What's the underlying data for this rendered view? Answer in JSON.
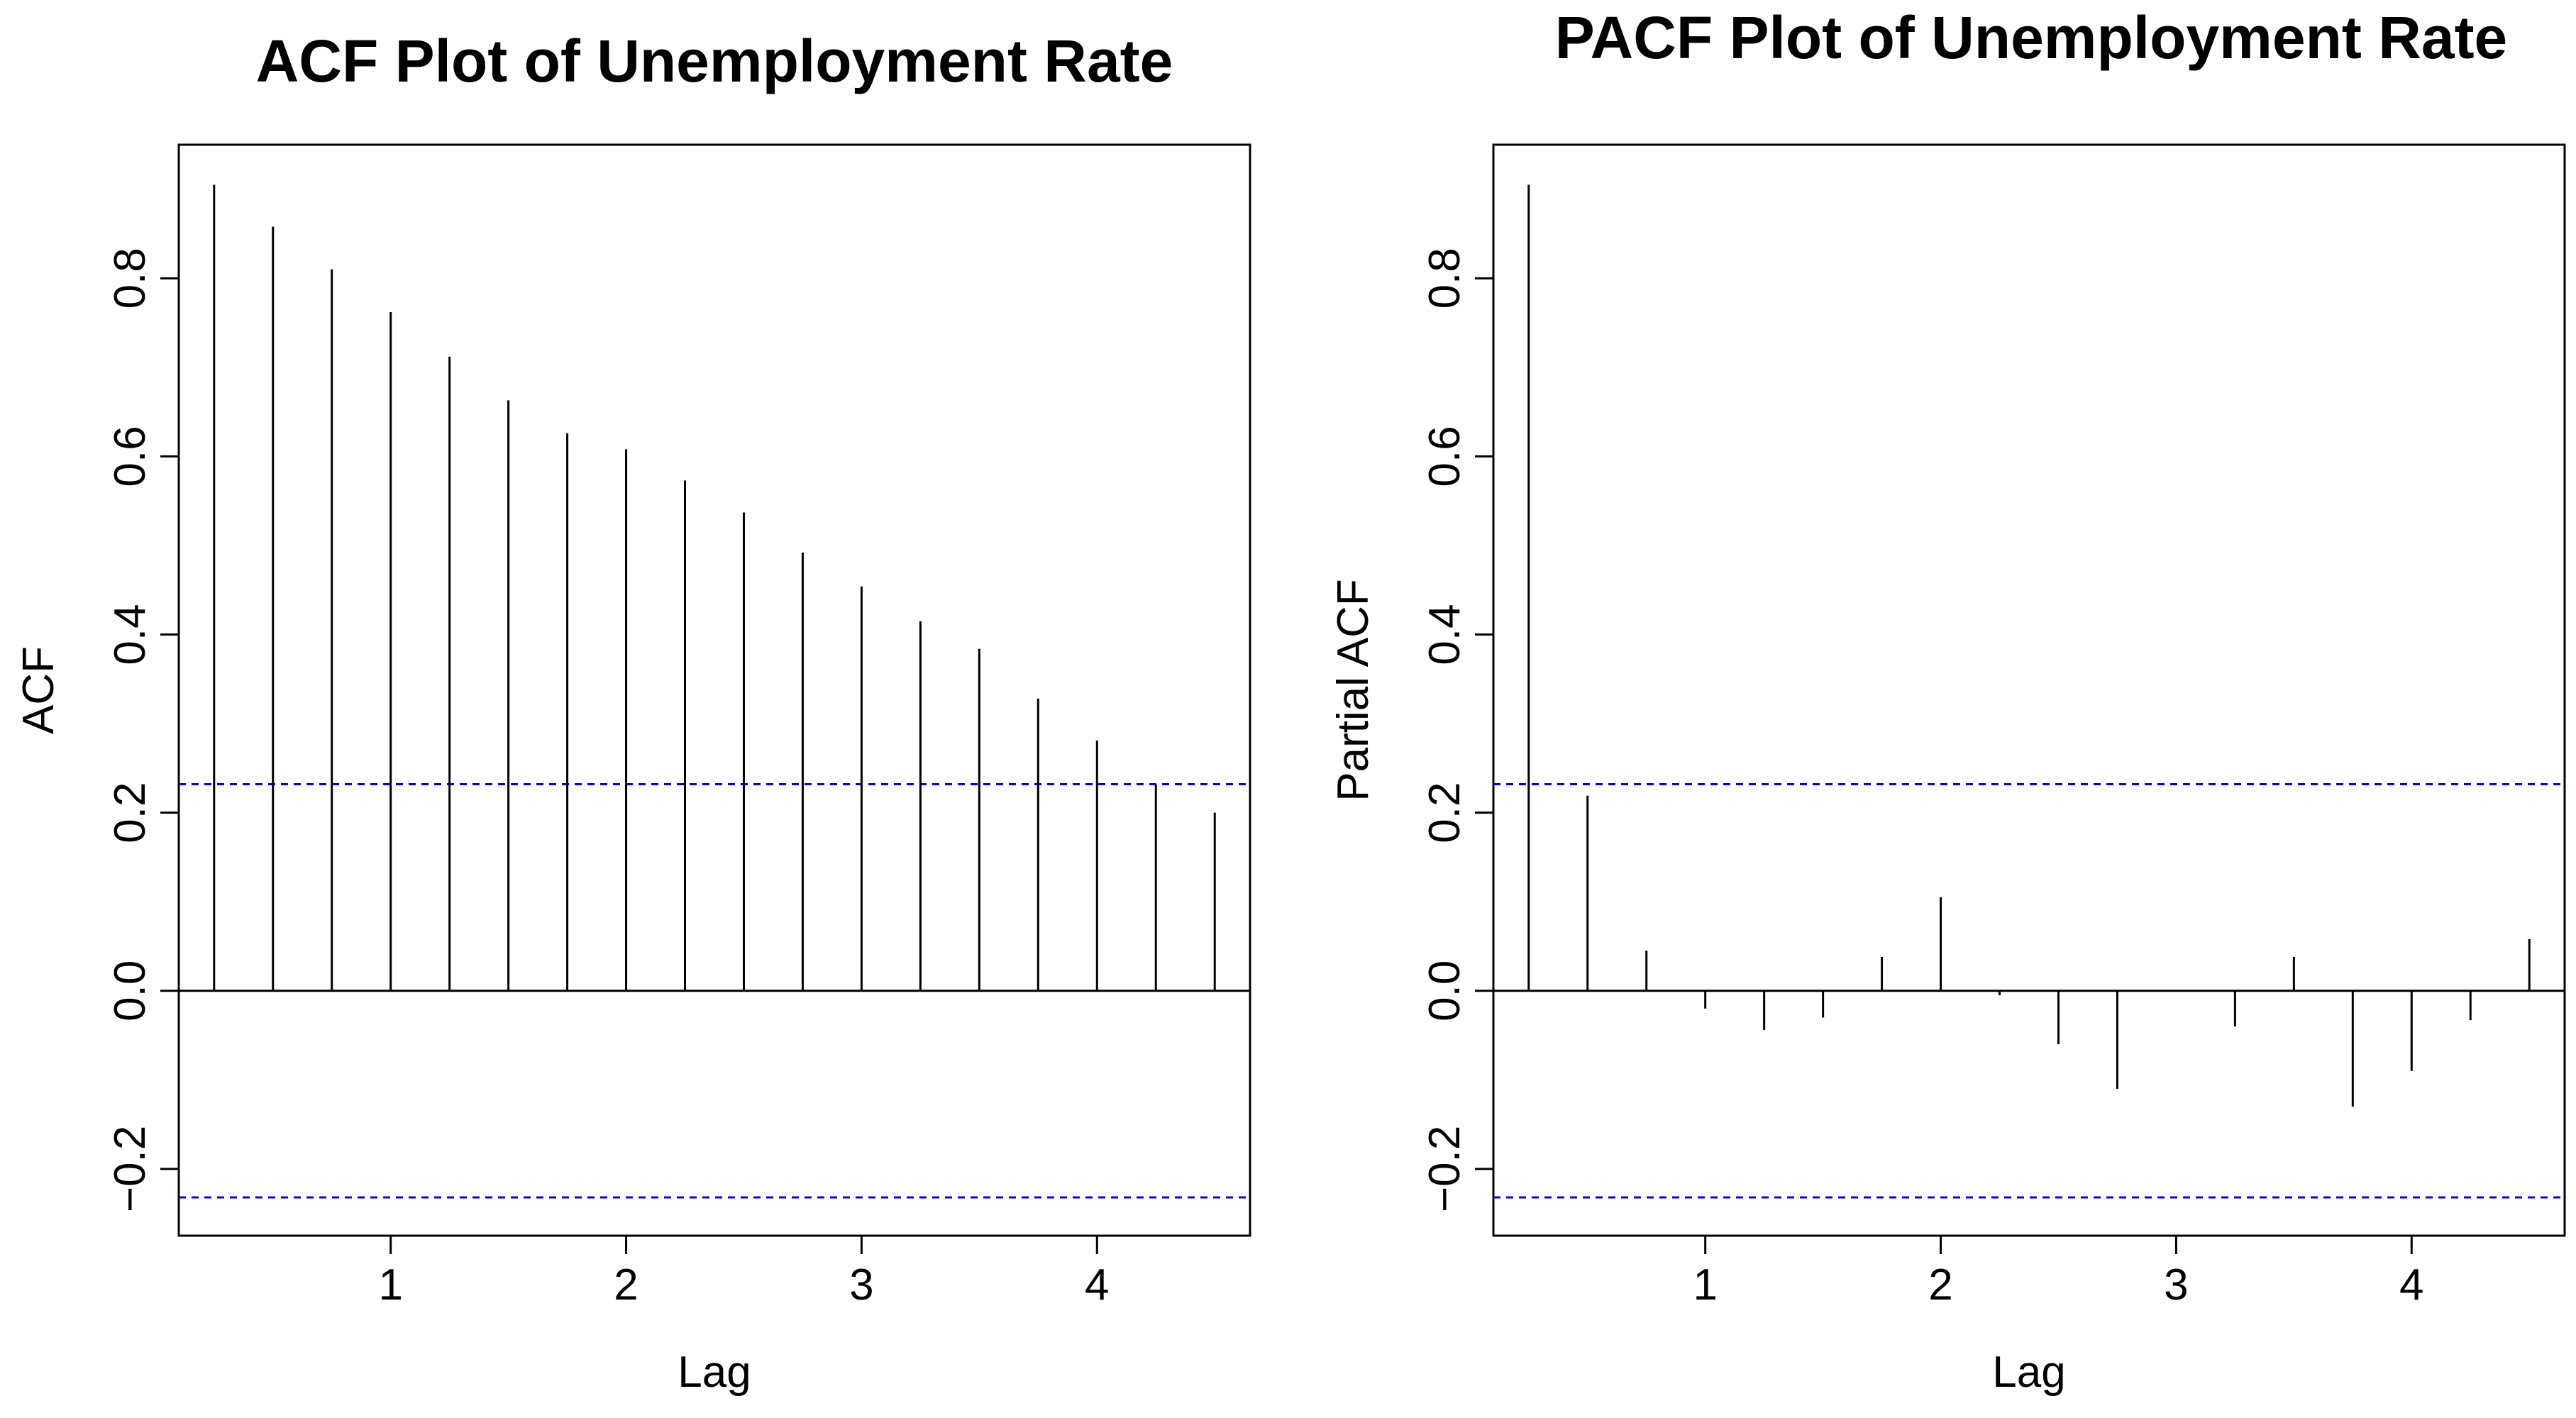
{
  "chart_data": [
    {
      "type": "bar",
      "title": "ACF Plot of Unemployment Rate",
      "xlabel": "Lag",
      "ylabel": "ACF",
      "xlim": [
        0.1,
        4.65
      ],
      "ylim": [
        -0.275,
        0.95
      ],
      "x_ticks": [
        1,
        2,
        3,
        4
      ],
      "x_tick_labels": [
        "1",
        "2",
        "3",
        "4"
      ],
      "y_ticks": [
        -0.2,
        0.0,
        0.2,
        0.4,
        0.6,
        0.8
      ],
      "y_tick_labels": [
        "−0.2",
        "0.0",
        "0.2",
        "0.4",
        "0.6",
        "0.8"
      ],
      "confidence_bound": 0.232,
      "lags": [
        0.25,
        0.5,
        0.75,
        1.0,
        1.25,
        1.5,
        1.75,
        2.0,
        2.25,
        2.5,
        2.75,
        3.0,
        3.25,
        3.5,
        3.75,
        4.0,
        4.25,
        4.5
      ],
      "values": [
        0.905,
        0.858,
        0.81,
        0.762,
        0.712,
        0.663,
        0.626,
        0.608,
        0.573,
        0.537,
        0.492,
        0.454,
        0.415,
        0.384,
        0.328,
        0.281,
        0.232,
        0.2
      ],
      "series_color": "#000000",
      "bound_color": "#0000FF",
      "grid": false
    },
    {
      "type": "bar",
      "title": "PACF Plot of Unemployment Rate",
      "xlabel": "Lag",
      "ylabel": "Partial ACF",
      "xlim": [
        0.1,
        4.65
      ],
      "ylim": [
        -0.275,
        0.95
      ],
      "x_ticks": [
        1,
        2,
        3,
        4
      ],
      "x_tick_labels": [
        "1",
        "2",
        "3",
        "4"
      ],
      "y_ticks": [
        -0.2,
        0.0,
        0.2,
        0.4,
        0.6,
        0.8
      ],
      "y_tick_labels": [
        "−0.2",
        "0.0",
        "0.2",
        "0.4",
        "0.6",
        "0.8"
      ],
      "confidence_bound": 0.232,
      "lags": [
        0.25,
        0.5,
        0.75,
        1.0,
        1.25,
        1.5,
        1.75,
        2.0,
        2.25,
        2.5,
        2.75,
        3.0,
        3.25,
        3.5,
        3.75,
        4.0,
        4.25,
        4.5
      ],
      "values": [
        0.905,
        0.219,
        0.045,
        -0.02,
        -0.044,
        -0.03,
        0.038,
        0.105,
        -0.005,
        -0.06,
        -0.11,
        0.0,
        -0.04,
        0.038,
        -0.13,
        -0.09,
        -0.033,
        0.058
      ],
      "series_color": "#000000",
      "bound_color": "#0000FF",
      "grid": false
    }
  ]
}
